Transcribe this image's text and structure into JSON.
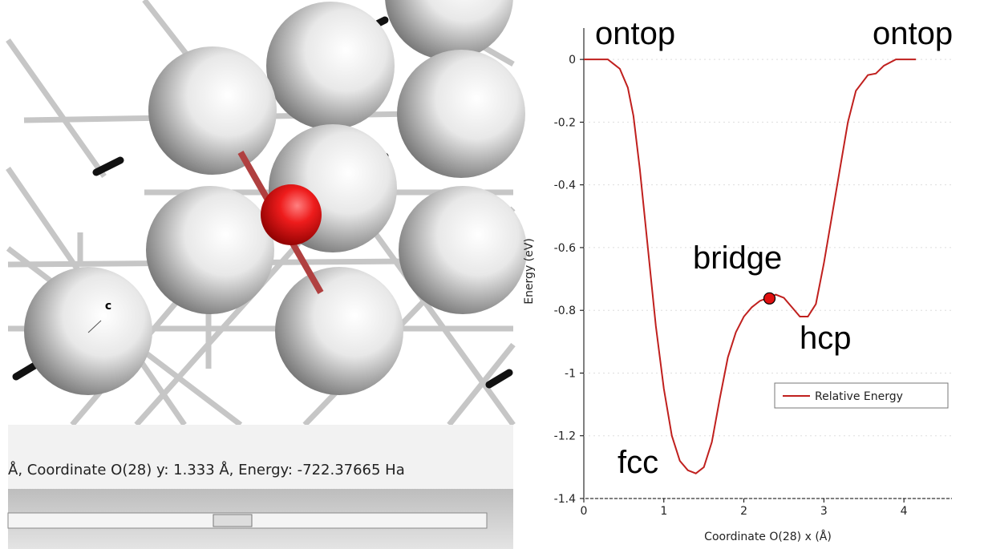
{
  "viewer": {
    "status": "Å, Coordinate O(28) y: 1.333 Å, Energy: -722.37665 Ha",
    "atom_label": "c"
  },
  "chart_data": {
    "type": "line",
    "x_label": "Coordinate O(28) x (Å)",
    "y_label": "Energy (eV)",
    "x": [
      0,
      0.3,
      0.45,
      0.55,
      0.62,
      0.7,
      0.8,
      0.9,
      1.0,
      1.1,
      1.2,
      1.3,
      1.4,
      1.5,
      1.6,
      1.7,
      1.8,
      1.9,
      2.0,
      2.1,
      2.2,
      2.3,
      2.4,
      2.5,
      2.6,
      2.7,
      2.8,
      2.9,
      3.0,
      3.1,
      3.2,
      3.3,
      3.4,
      3.55,
      3.65,
      3.75,
      3.9,
      4.15
    ],
    "series": [
      {
        "name": "Relative Energy",
        "color": "#c0201e",
        "values": [
          0,
          0,
          -0.03,
          -0.09,
          -0.18,
          -0.35,
          -0.6,
          -0.85,
          -1.05,
          -1.2,
          -1.28,
          -1.31,
          -1.32,
          -1.3,
          -1.22,
          -1.08,
          -0.95,
          -0.87,
          -0.82,
          -0.79,
          -0.77,
          -0.76,
          -0.75,
          -0.76,
          -0.79,
          -0.82,
          -0.82,
          -0.78,
          -0.65,
          -0.5,
          -0.35,
          -0.2,
          -0.1,
          -0.05,
          -0.045,
          -0.02,
          0,
          0
        ]
      }
    ],
    "marker": {
      "x": 2.32,
      "y": -0.762,
      "color": "#e01010"
    },
    "annotations": [
      "ontop",
      "ontop",
      "bridge",
      "hcp",
      "fcc"
    ],
    "xlim": [
      0,
      4.6
    ],
    "ylim": [
      -1.4,
      0.1
    ],
    "xticks": [
      0,
      1,
      2,
      3,
      4
    ],
    "yticks": [
      0,
      -0.2,
      -0.4,
      -0.6,
      -0.8,
      -1,
      -1.2,
      -1.4
    ],
    "legend": "lower right"
  }
}
